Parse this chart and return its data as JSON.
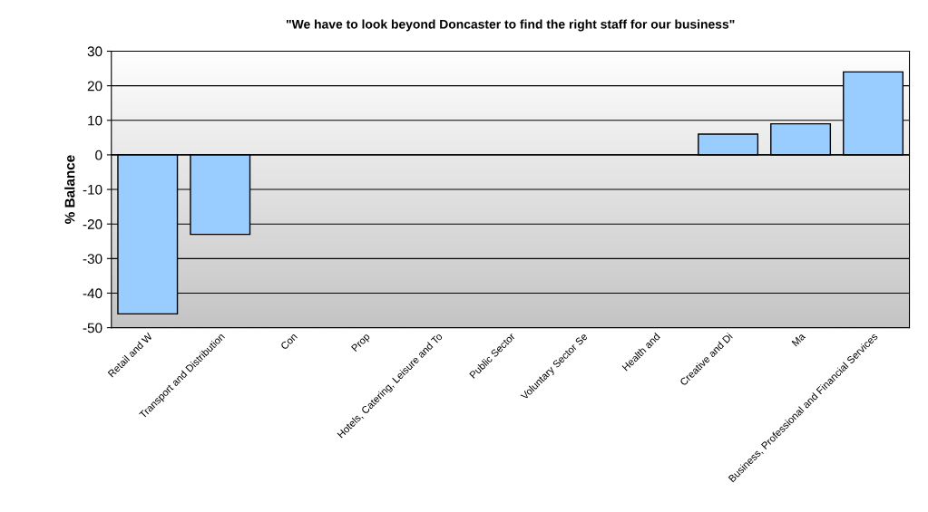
{
  "chart_data": {
    "type": "bar",
    "title": "\"We have to look beyond Doncaster to find the right staff for our business\"",
    "ylabel": "% Balance",
    "categories": [
      "Retail and W",
      "Transport and Distribution",
      "Con",
      "Prop",
      "Hotels, Catering, Leisure and To",
      "Public Sector",
      "Voluntary Sector Se",
      "Health and",
      "Creative and Di",
      "Ma",
      "Business, Professional and Financial Services"
    ],
    "values": [
      -46,
      -23,
      null,
      null,
      null,
      null,
      null,
      null,
      6,
      9,
      24
    ],
    "color": "#99ccff",
    "ylim": [
      -50,
      30
    ],
    "yticks": [
      -50,
      -40,
      -30,
      -20,
      -10,
      0,
      10,
      20,
      30
    ],
    "grid": "y"
  }
}
